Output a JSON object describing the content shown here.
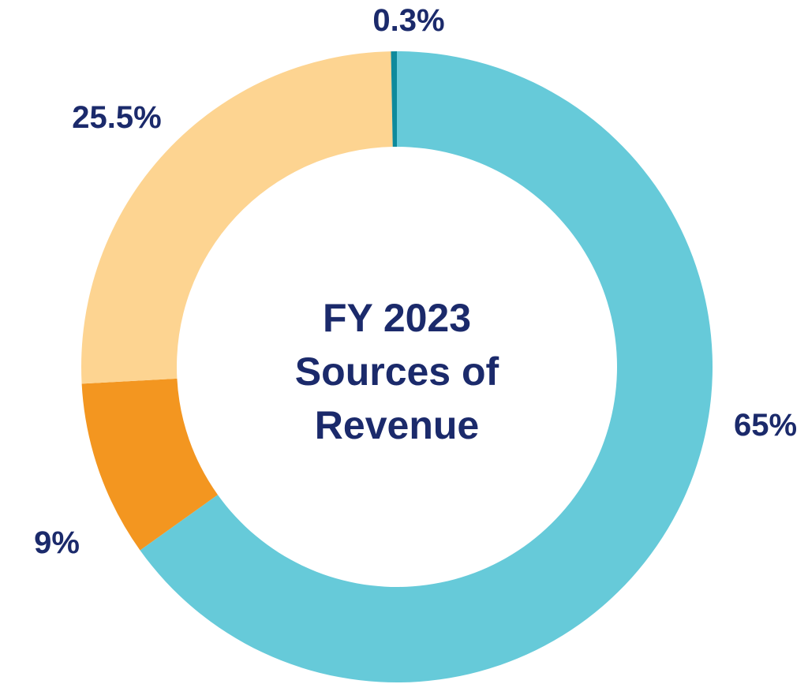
{
  "chart_data": {
    "type": "pie",
    "style": "donut",
    "title_lines": [
      "FY 2023",
      "Sources of",
      "Revenue"
    ],
    "slices": [
      {
        "value": 65,
        "label": "65%",
        "color": "#66cad9"
      },
      {
        "value": 9,
        "label": "9%",
        "color": "#f39620"
      },
      {
        "value": 25.5,
        "label": "25.5%",
        "color": "#fdd491"
      },
      {
        "value": 0.3,
        "label": "0.3%",
        "color": "#0e8a9c"
      }
    ],
    "legend": false
  },
  "colors": {
    "label_text": "#1b2a6b",
    "background": "#ffffff"
  }
}
